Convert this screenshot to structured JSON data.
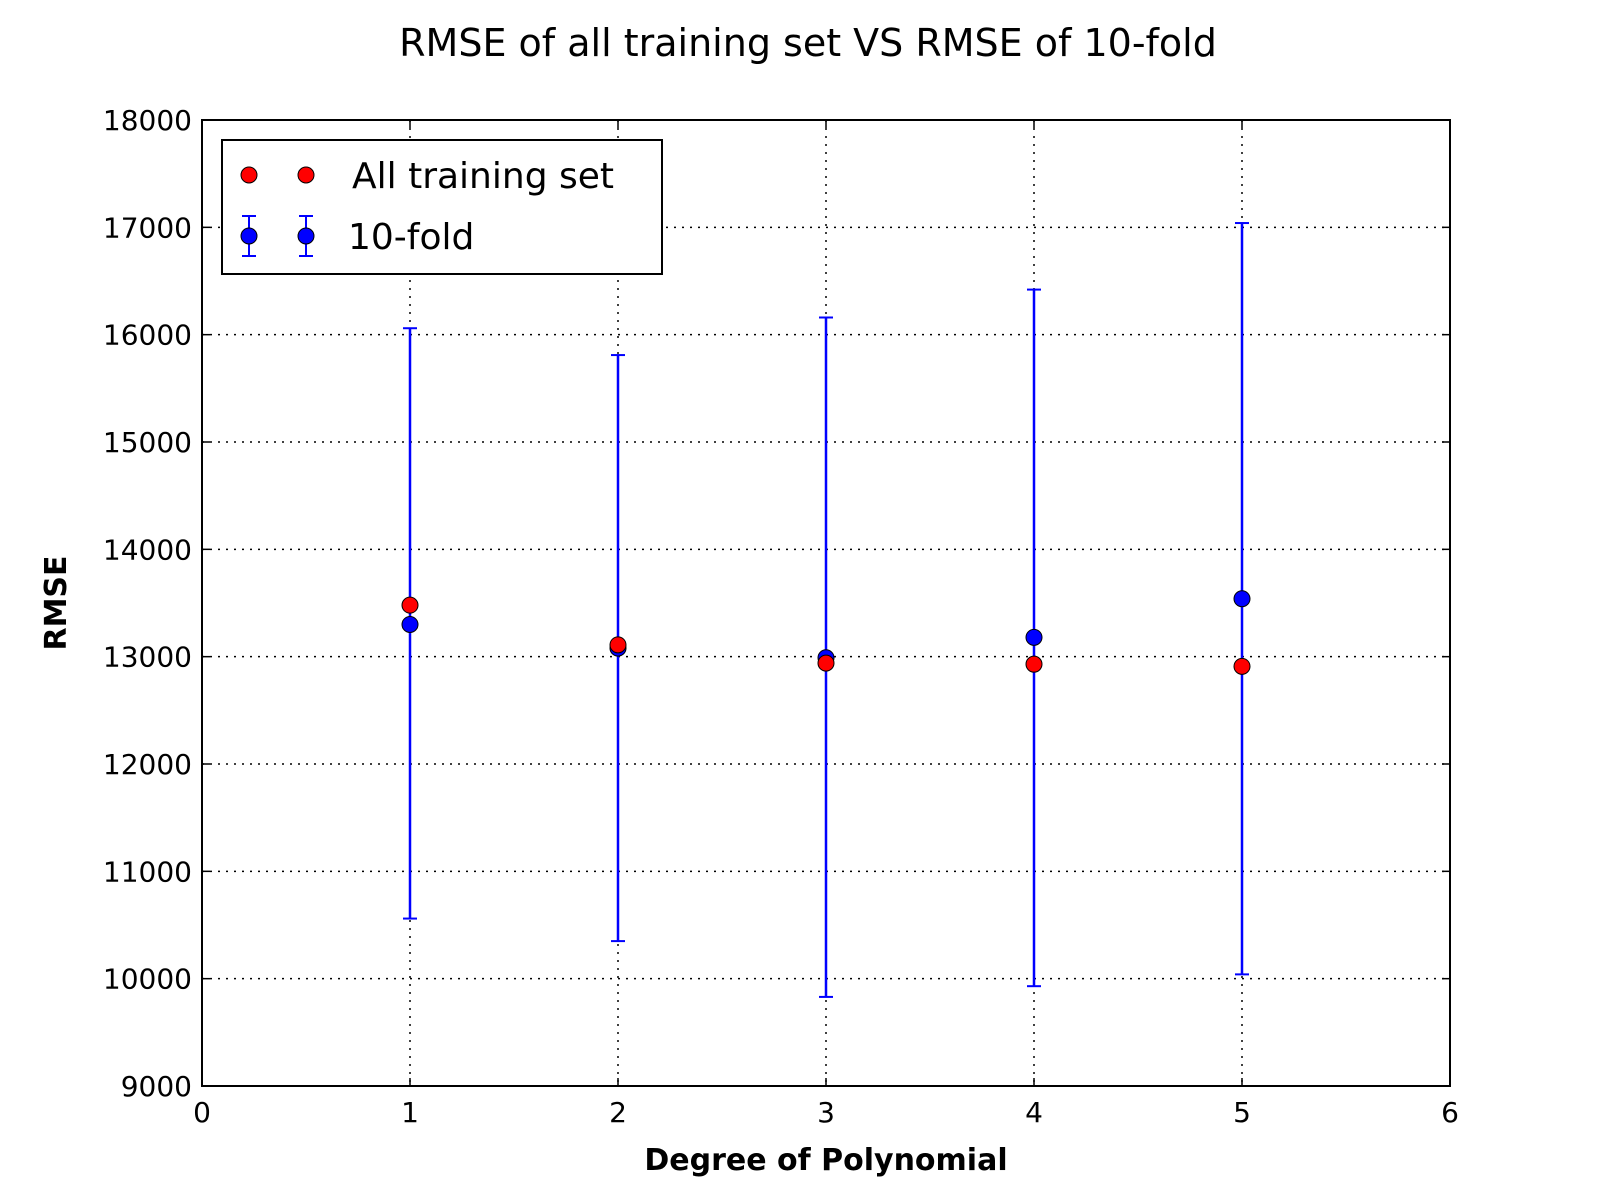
{
  "chart_data": {
    "type": "scatter",
    "title": "RMSE of all training set VS RMSE of 10-fold",
    "xlabel": "Degree of Polynomial",
    "ylabel": "RMSE",
    "xlim": [
      0,
      6
    ],
    "ylim": [
      9000,
      18000
    ],
    "xticks": [
      0,
      1,
      2,
      3,
      4,
      5,
      6
    ],
    "yticks": [
      9000,
      10000,
      11000,
      12000,
      13000,
      14000,
      15000,
      16000,
      17000,
      18000
    ],
    "xtick_labels": [
      "0",
      "1",
      "2",
      "3",
      "4",
      "5",
      "6"
    ],
    "ytick_labels": [
      "9000",
      "10000",
      "11000",
      "12000",
      "13000",
      "14000",
      "15000",
      "16000",
      "17000",
      "18000"
    ],
    "grid": true,
    "legend_position": "top-left",
    "series": [
      {
        "name": "10-fold",
        "color": "#0000ff",
        "marker": "circle",
        "x": [
          1,
          2,
          3,
          4,
          5
        ],
        "y": [
          13300,
          13080,
          12990,
          13180,
          13540
        ],
        "yerr_low": [
          10560,
          10350,
          9830,
          9930,
          10040
        ],
        "yerr_high": [
          16060,
          15810,
          16160,
          16420,
          17040
        ]
      },
      {
        "name": "All training set",
        "color": "#ff0000",
        "marker": "circle",
        "x": [
          1,
          2,
          3,
          4,
          5
        ],
        "y": [
          13480,
          13110,
          12940,
          12930,
          12910
        ]
      }
    ],
    "legend": [
      "All training set",
      "10-fold"
    ]
  }
}
